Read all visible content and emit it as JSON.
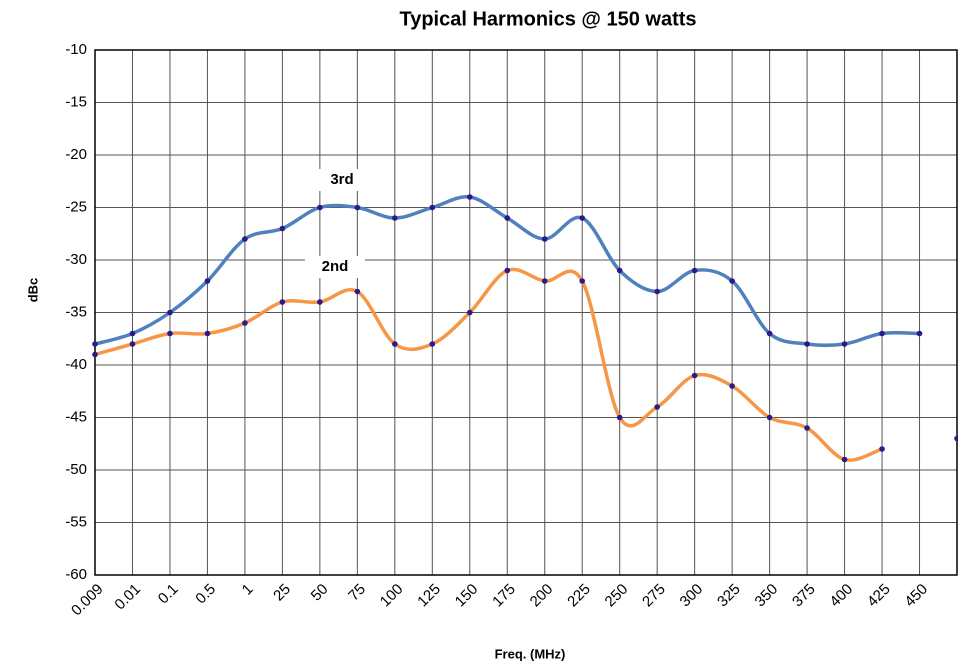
{
  "chart_data": {
    "type": "line",
    "title": "Typical Harmonics @ 150 watts",
    "x_label": "Freq. (MHz)",
    "y_label": "dBc",
    "categories": [
      "0.009",
      "0.01",
      "0.1",
      "0.5",
      "1",
      "25",
      "50",
      "75",
      "100",
      "125",
      "150",
      "175",
      "200",
      "225",
      "250",
      "275",
      "300",
      "325",
      "350",
      "375",
      "400",
      "425",
      "450",
      null
    ],
    "series": [
      {
        "name": "3rd",
        "color": "#4f81bd",
        "values": [
          -38,
          -37,
          -35,
          -32,
          -28,
          -27,
          -25,
          -25,
          -26,
          -25,
          -24,
          -26,
          -28,
          -26,
          -31,
          -33,
          -31,
          -32,
          -37,
          -38,
          -38,
          -37,
          -37,
          null
        ]
      },
      {
        "name": "2nd",
        "color": "#f79646",
        "values": [
          -39,
          -38,
          -37,
          -37,
          -36,
          -34,
          -34,
          -33,
          -38,
          -38,
          -35,
          -31,
          -32,
          -32,
          -45,
          -44,
          -41,
          -42,
          -45,
          -46,
          -49,
          -48,
          null,
          -47
        ]
      }
    ],
    "marker_color": "#2b1a8c",
    "ylim": [
      -60,
      -10
    ],
    "yticks": [
      -60,
      -55,
      -50,
      -45,
      -40,
      -35,
      -30,
      -25,
      -20,
      -15,
      -10
    ],
    "grid": true
  }
}
